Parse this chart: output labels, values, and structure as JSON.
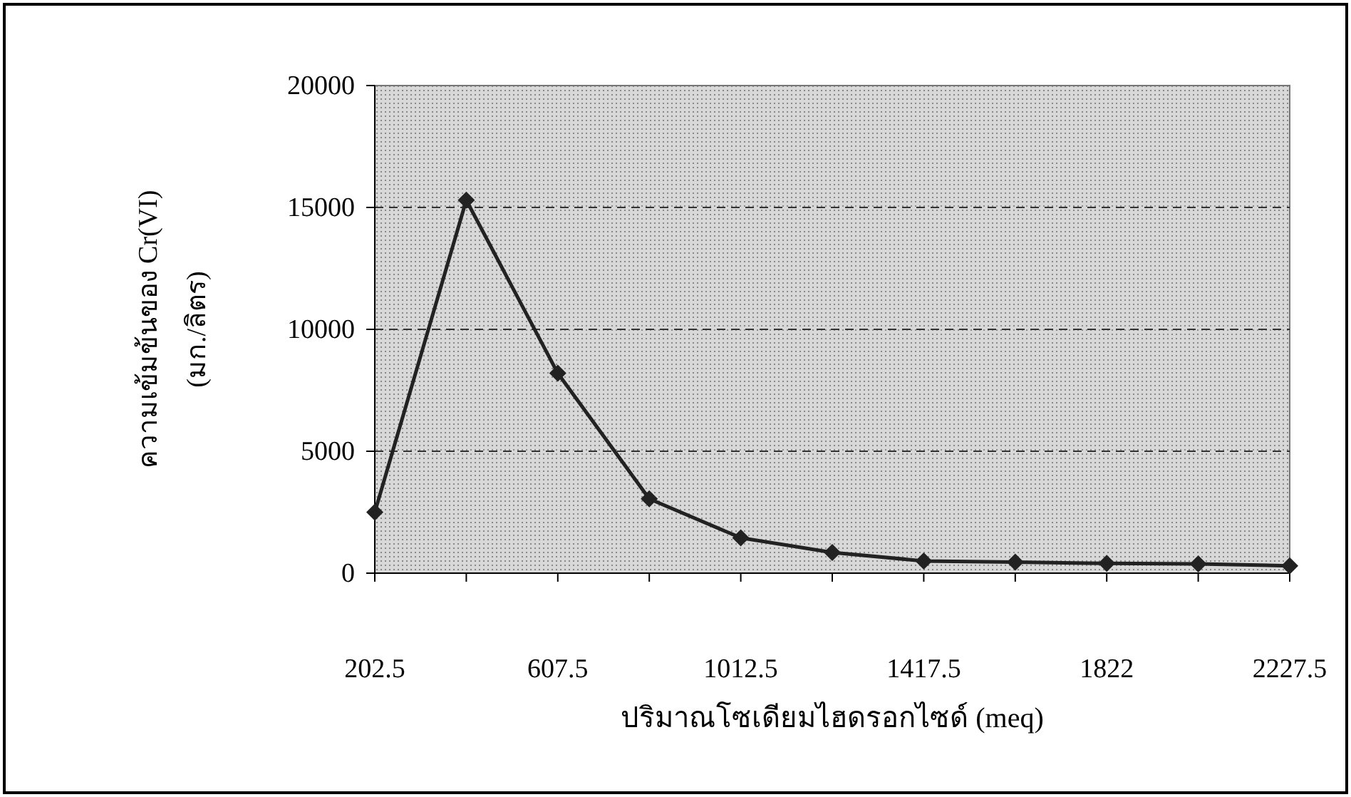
{
  "chart_data": {
    "type": "line",
    "xlabel": "ปริมาณโซเดียมไฮดรอกไซด์ (meq)",
    "ylabel": "ความเข้มข้นของ Cr(VI) (มก./ลิตร)",
    "categories": [
      "202.5",
      null,
      "607.5",
      null,
      "1012.5",
      null,
      "1417.5",
      null,
      "1822",
      null,
      "2227.5"
    ],
    "series": [
      {
        "color": "#222222",
        "values": [
          2500,
          15300,
          8200,
          3050,
          1450,
          850,
          500,
          450,
          400,
          380,
          300
        ]
      }
    ],
    "ylim": [
      0,
      20000
    ],
    "yticks": [
      0,
      5000,
      10000,
      15000,
      20000
    ],
    "grid": "y",
    "marker": "diamond",
    "line_style": "solid"
  }
}
